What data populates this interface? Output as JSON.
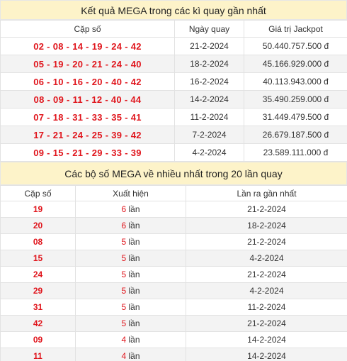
{
  "results": {
    "title": "Kết quả MEGA trong các kì quay gần nhất",
    "headers": [
      "Cặp số",
      "Ngày quay",
      "Giá trị Jackpot"
    ],
    "rows": [
      {
        "numbers": "02 - 08 - 14 - 19 - 24 - 42",
        "date": "21-2-2024",
        "jackpot": "50.440.757.500 đ"
      },
      {
        "numbers": "05 - 19 - 20 - 21 - 24 - 40",
        "date": "18-2-2024",
        "jackpot": "45.166.929.000 đ"
      },
      {
        "numbers": "06 - 10 - 16 - 20 - 40 - 42",
        "date": "16-2-2024",
        "jackpot": "40.113.943.000 đ"
      },
      {
        "numbers": "08 - 09 - 11 - 12 - 40 - 44",
        "date": "14-2-2024",
        "jackpot": "35.490.259.000 đ"
      },
      {
        "numbers": "07 - 18 - 31 - 33 - 35 - 41",
        "date": "11-2-2024",
        "jackpot": "31.449.479.500 đ"
      },
      {
        "numbers": "17 - 21 - 24 - 25 - 39 - 42",
        "date": "7-2-2024",
        "jackpot": "26.679.187.500 đ"
      },
      {
        "numbers": "09 - 15 - 21 - 29 - 33 - 39",
        "date": "4-2-2024",
        "jackpot": "23.589.111.000 đ"
      }
    ]
  },
  "frequency": {
    "title": "Các bộ số MEGA về nhiều nhất trong 20 lần quay",
    "headers": [
      "Cặp số",
      "Xuất hiện",
      "Lần ra gần nhất"
    ],
    "times_suffix": "lần",
    "rows": [
      {
        "number": "19",
        "count": "6",
        "last": "21-2-2024"
      },
      {
        "number": "20",
        "count": "6",
        "last": "18-2-2024"
      },
      {
        "number": "08",
        "count": "5",
        "last": "21-2-2024"
      },
      {
        "number": "15",
        "count": "5",
        "last": "4-2-2024"
      },
      {
        "number": "24",
        "count": "5",
        "last": "21-2-2024"
      },
      {
        "number": "29",
        "count": "5",
        "last": "4-2-2024"
      },
      {
        "number": "31",
        "count": "5",
        "last": "11-2-2024"
      },
      {
        "number": "42",
        "count": "5",
        "last": "21-2-2024"
      },
      {
        "number": "09",
        "count": "4",
        "last": "14-2-2024"
      },
      {
        "number": "11",
        "count": "4",
        "last": "14-2-2024"
      }
    ]
  },
  "colors": {
    "accent_red": "#e0151c",
    "header_bg": "#fdf3c9",
    "stripe_bg": "#f3f3f3"
  }
}
